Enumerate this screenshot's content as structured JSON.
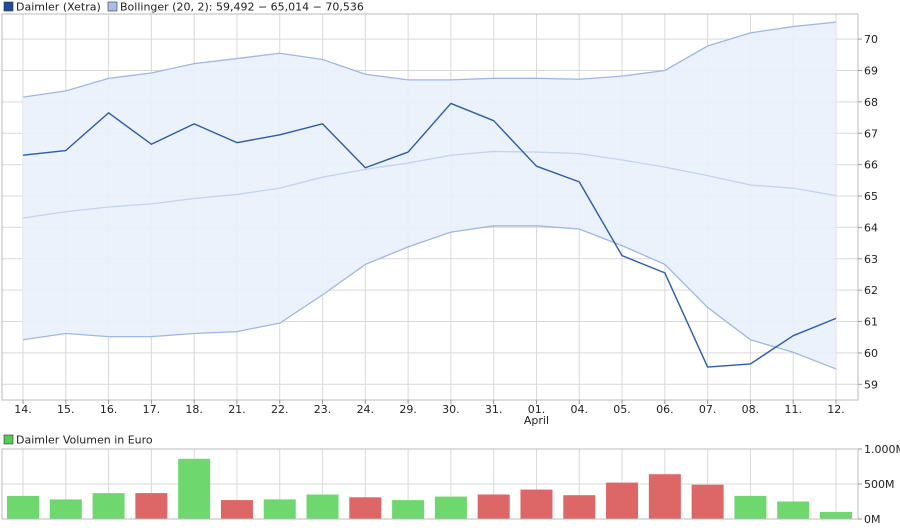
{
  "legend": {
    "price_label": "Daimler (Xetra)",
    "bollinger_label": "Bollinger (20, 2): 59,492 − 65,014 − 70,536",
    "volume_label": "Daimler Volumen in Euro"
  },
  "colors": {
    "price_line": "#2a5caa",
    "band_line": "#9fb7e3",
    "band_fill": "#eaf1fc",
    "mid_line": "#c4d3ee",
    "volume_up": "#6ed86e",
    "volume_down": "#dd6666",
    "grid": "#d9d9d9",
    "legend_price_swatch": "#1e4c9a",
    "legend_bollinger_swatch": "#a9bde6",
    "legend_volume_swatch": "#55cc55"
  },
  "chart_data": [
    {
      "type": "line",
      "title": "",
      "categories": [
        "14.",
        "15.",
        "16.",
        "17.",
        "18.",
        "21.",
        "22.",
        "23.",
        "24.",
        "29.",
        "30.",
        "31.",
        "01.",
        "04.",
        "05.",
        "06.",
        "07.",
        "08.",
        "11.",
        "12."
      ],
      "category_sublabels": {
        "12": "April"
      },
      "ylim": [
        58.5,
        70.8
      ],
      "yticks": [
        59,
        60,
        61,
        62,
        63,
        64,
        65,
        66,
        67,
        68,
        69,
        70
      ],
      "grid": true,
      "series": [
        {
          "name": "Daimler (Xetra)",
          "role": "price",
          "values": [
            66.3,
            66.45,
            67.65,
            66.65,
            67.3,
            66.7,
            66.95,
            67.3,
            65.9,
            66.4,
            67.95,
            67.4,
            65.95,
            65.45,
            63.1,
            62.55,
            59.55,
            59.65,
            60.55,
            61.1
          ]
        },
        {
          "name": "Bollinger upper",
          "role": "band_upper",
          "values": [
            68.15,
            68.35,
            68.75,
            68.92,
            69.22,
            69.38,
            69.55,
            69.35,
            68.88,
            68.7,
            68.7,
            68.75,
            68.75,
            68.72,
            68.82,
            69.0,
            69.78,
            70.2,
            70.4,
            70.54
          ]
        },
        {
          "name": "Bollinger middle",
          "role": "band_middle",
          "values": [
            64.3,
            64.5,
            64.65,
            64.75,
            64.92,
            65.05,
            65.25,
            65.6,
            65.85,
            66.05,
            66.3,
            66.42,
            66.4,
            66.35,
            66.15,
            65.92,
            65.65,
            65.35,
            65.25,
            65.01
          ]
        },
        {
          "name": "Bollinger lower",
          "role": "band_lower",
          "values": [
            60.42,
            60.62,
            60.52,
            60.52,
            60.62,
            60.68,
            60.95,
            61.85,
            62.82,
            63.38,
            63.85,
            64.05,
            64.05,
            63.95,
            63.42,
            62.82,
            61.45,
            60.42,
            60.02,
            59.49
          ]
        }
      ]
    },
    {
      "type": "bar",
      "title": "",
      "categories": [
        "14.",
        "15.",
        "16.",
        "17.",
        "18.",
        "21.",
        "22.",
        "23.",
        "24.",
        "29.",
        "30.",
        "31.",
        "01.",
        "04.",
        "05.",
        "06.",
        "07.",
        "08.",
        "11.",
        "12."
      ],
      "ylim": [
        0,
        1000
      ],
      "yticks": [
        0,
        500,
        1000
      ],
      "ytick_labels": [
        "0M",
        "500M",
        "1.000M"
      ],
      "grid": true,
      "series": [
        {
          "name": "Daimler Volumen in Euro",
          "values": [
            330,
            280,
            370,
            370,
            860,
            270,
            280,
            350,
            310,
            270,
            320,
            350,
            420,
            340,
            520,
            640,
            490,
            330,
            250,
            100
          ],
          "direction": [
            "up",
            "up",
            "up",
            "down",
            "up",
            "down",
            "up",
            "up",
            "down",
            "up",
            "up",
            "down",
            "down",
            "down",
            "down",
            "down",
            "down",
            "up",
            "up",
            "up"
          ]
        }
      ]
    }
  ]
}
